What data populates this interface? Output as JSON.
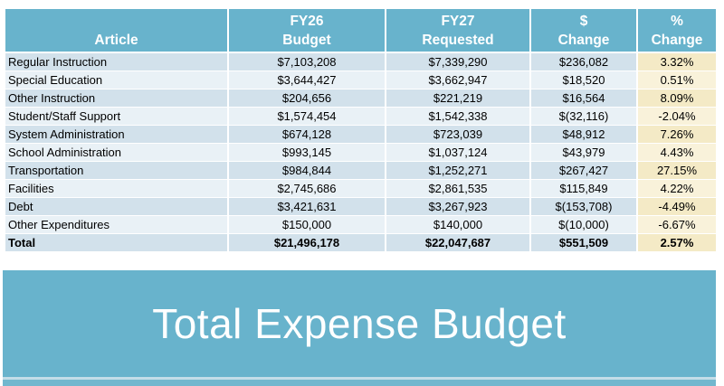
{
  "colors": {
    "teal": "#68b3cc",
    "row_dark": "#d2e1eb",
    "row_light": "#e9f1f6",
    "pct_dark": "#f4eac6",
    "pct_light": "#f9f2da",
    "header_text": "#ffffff",
    "body_text": "#000000"
  },
  "banner": {
    "title": "Total Expense Budget"
  },
  "table": {
    "columns": [
      {
        "line1": "",
        "line2": "Article"
      },
      {
        "line1": "FY26",
        "line2": "Budget"
      },
      {
        "line1": "FY27",
        "line2": "Requested"
      },
      {
        "line1": "$",
        "line2": "Change"
      },
      {
        "line1": "%",
        "line2": "Change"
      }
    ],
    "rows": [
      {
        "article": "Regular Instruction",
        "fy26": "$7,103,208",
        "fy27": "$7,339,290",
        "dollar_change": "$236,082",
        "pct_change": "3.32%"
      },
      {
        "article": "Special Education",
        "fy26": "$3,644,427",
        "fy27": "$3,662,947",
        "dollar_change": "$18,520",
        "pct_change": "0.51%"
      },
      {
        "article": "Other Instruction",
        "fy26": "$204,656",
        "fy27": "$221,219",
        "dollar_change": "$16,564",
        "pct_change": "8.09%"
      },
      {
        "article": "Student/Staff Support",
        "fy26": "$1,574,454",
        "fy27": "$1,542,338",
        "dollar_change": "$(32,116)",
        "pct_change": "-2.04%"
      },
      {
        "article": "System Administration",
        "fy26": "$674,128",
        "fy27": "$723,039",
        "dollar_change": "$48,912",
        "pct_change": "7.26%"
      },
      {
        "article": "School Administration",
        "fy26": "$993,145",
        "fy27": "$1,037,124",
        "dollar_change": "$43,979",
        "pct_change": "4.43%"
      },
      {
        "article": "Transportation",
        "fy26": "$984,844",
        "fy27": "$1,252,271",
        "dollar_change": "$267,427",
        "pct_change": "27.15%"
      },
      {
        "article": "Facilities",
        "fy26": "$2,745,686",
        "fy27": "$2,861,535",
        "dollar_change": "$115,849",
        "pct_change": "4.22%"
      },
      {
        "article": "Debt",
        "fy26": "$3,421,631",
        "fy27": "$3,267,923",
        "dollar_change": "$(153,708)",
        "pct_change": "-4.49%"
      },
      {
        "article": "Other Expenditures",
        "fy26": "$150,000",
        "fy27": "$140,000",
        "dollar_change": "$(10,000)",
        "pct_change": "-6.67%"
      },
      {
        "article": "Total",
        "fy26": "$21,496,178",
        "fy27": "$22,047,687",
        "dollar_change": "$551,509",
        "pct_change": "2.57%",
        "is_total": true
      }
    ]
  }
}
